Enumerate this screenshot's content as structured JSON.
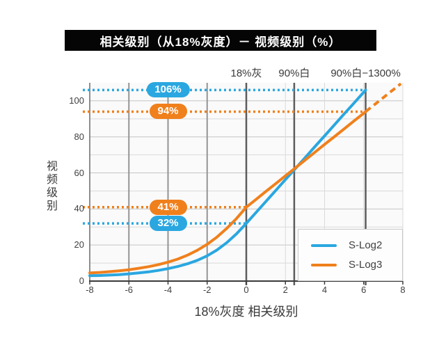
{
  "title": "相关级别（从18%灰度）－ 视频级别（%）",
  "colors": {
    "slog2_blue": "#2aa7e0",
    "slog3_orange": "#f0801c",
    "title_bar_bg": "#050505",
    "title_text": "#ffffff",
    "plot_bg": "#fafafa",
    "grid_light": "#dadada",
    "grid_mid": "#c4c4c4",
    "grid_medium_vline": "#949494",
    "marker_line": "#5c5c5c",
    "axis_bottom": "#3b3b3b",
    "axis_left": "#6a6a6a",
    "label_text": "#3f3f3f"
  },
  "chart_data": {
    "type": "line",
    "title": "相关级别（从18%灰度）－ 视频级别（%）",
    "xlabel": "18%灰度 相关级别",
    "ylabel": "视频级别",
    "xlim": [
      -8,
      8
    ],
    "ylim": [
      0,
      110
    ],
    "x_ticks": [
      -8,
      -6,
      -4,
      -2,
      0,
      2,
      4,
      6,
      8
    ],
    "y_ticks": [
      0,
      20,
      40,
      60,
      80,
      100
    ],
    "y_grid_step": 10,
    "grid": true,
    "vertical_markers": [
      {
        "x": 0,
        "label": "18%灰"
      },
      {
        "x": 2.45,
        "label": "90%白"
      },
      {
        "x": 6.1,
        "label": "90%白−1300%"
      }
    ],
    "medium_vlines": [
      -6,
      -4,
      -2
    ],
    "light_vlines": [
      2,
      4,
      6,
      8
    ],
    "x": [
      -8,
      -7.5,
      -7,
      -6.5,
      -6,
      -5.5,
      -5,
      -4.5,
      -4,
      -3.5,
      -3,
      -2.5,
      -2,
      -1.5,
      -1,
      -0.5,
      0,
      0.5,
      1,
      1.5,
      2,
      2.5,
      3,
      3.5,
      4,
      4.5,
      5,
      5.5,
      6,
      6.1
    ],
    "series": [
      {
        "name": "S-Log2",
        "color": "#2aa7e0",
        "values": [
          3.0,
          3.1,
          3.3,
          3.6,
          4.0,
          4.5,
          5.1,
          5.9,
          6.9,
          8.1,
          9.6,
          11.5,
          14.0,
          17.2,
          21.3,
          26.2,
          32.0,
          38.1,
          44.1,
          50.2,
          56.3,
          62.3,
          68.4,
          74.5,
          80.5,
          86.6,
          92.7,
          98.7,
          104.8,
          106.0
        ]
      },
      {
        "name": "S-Log3",
        "color": "#f0801c",
        "values": [
          4.5,
          4.8,
          5.2,
          5.7,
          6.3,
          7.1,
          8.0,
          9.1,
          10.5,
          12.2,
          14.4,
          17.1,
          20.4,
          24.4,
          29.2,
          34.7,
          41.0,
          45.3,
          49.7,
          54.0,
          58.4,
          62.7,
          67.1,
          71.4,
          75.8,
          80.1,
          84.4,
          88.8,
          93.1,
          94.0
        ],
        "dashed_extension": {
          "x": [
            6.1,
            7.9
          ],
          "values": [
            94.0,
            109.5
          ]
        }
      }
    ],
    "reference_lines": [
      {
        "series": "S-Log2",
        "value": 106,
        "badge": "106%",
        "x_end": 6.1
      },
      {
        "series": "S-Log3",
        "value": 94,
        "badge": "94%",
        "x_end": 6.1
      },
      {
        "series": "S-Log3",
        "value": 41,
        "badge": "41%",
        "x_end": 0
      },
      {
        "series": "S-Log2",
        "value": 32,
        "badge": "32%",
        "x_end": 0
      }
    ],
    "badge_x": -4,
    "legend": {
      "position": "bottom-right",
      "entries": [
        "S-Log2",
        "S-Log3"
      ]
    }
  }
}
